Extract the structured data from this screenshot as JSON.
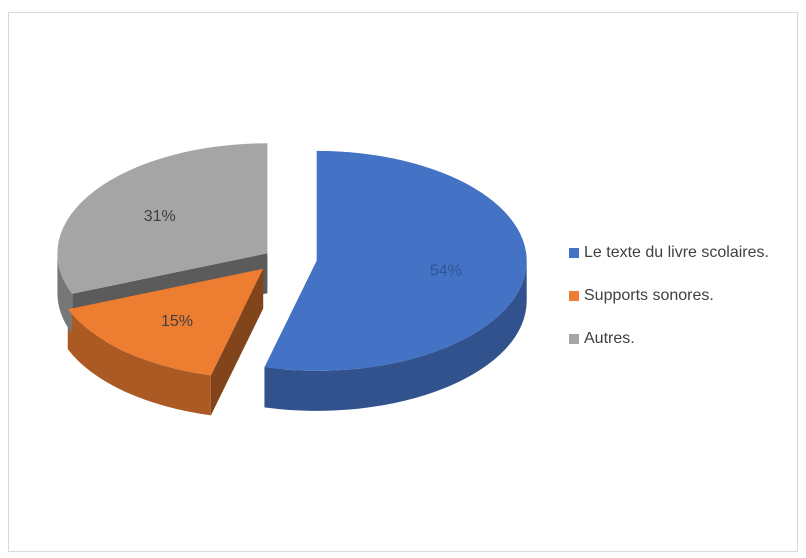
{
  "chart_data": {
    "type": "pie",
    "style": "3d-exploded",
    "categories": [
      "Le texte du livre scolaires.",
      "Supports sonores.",
      "Autres."
    ],
    "values": [
      54,
      15,
      31
    ],
    "data_labels": [
      "54%",
      "15%",
      "31%"
    ],
    "colors": [
      "#4472C4",
      "#ED7D31",
      "#A5A5A5"
    ],
    "legend_position": "right",
    "title": ""
  }
}
